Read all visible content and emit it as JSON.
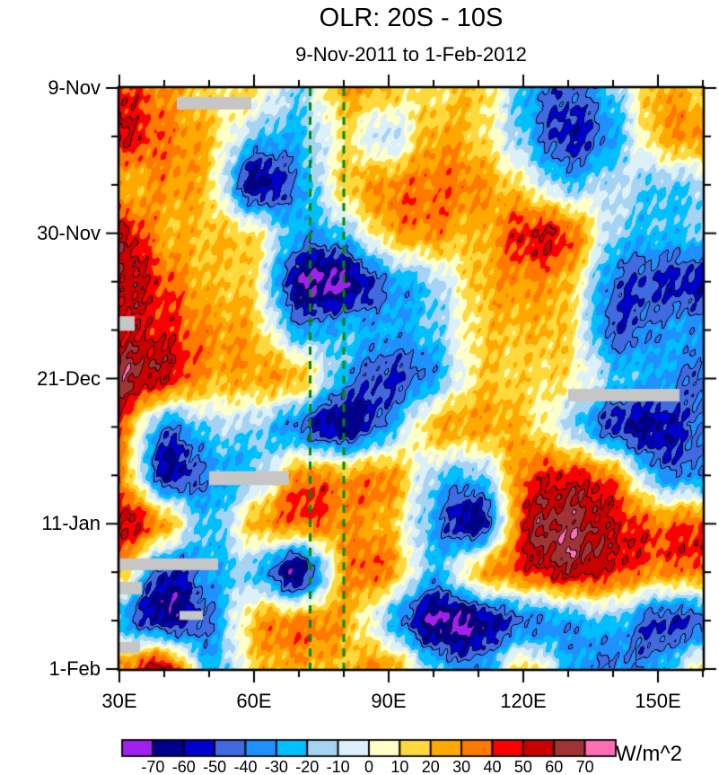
{
  "title": "OLR: 20S - 10S",
  "subtitle": "9-Nov-2011 to 1-Feb-2012",
  "colorbar": {
    "unit_label": "W/m^2"
  },
  "chart_data": {
    "type": "heatmap",
    "title": "OLR: 20S - 10S",
    "subtitle": "9-Nov-2011 to 1-Feb-2012",
    "unit": "W/m^2",
    "x_range_lon": [
      30,
      160
    ],
    "xlabel_ticks": [
      "30E",
      "60E",
      "90E",
      "120E",
      "150E"
    ],
    "x_tick_lons": [
      30,
      60,
      90,
      120,
      150
    ],
    "x_minor_step_deg": 10,
    "y_range_dates": [
      "9-Nov-2011",
      "1-Feb-2012"
    ],
    "ylabel_ticks": [
      "9-Nov",
      "30-Nov",
      "21-Dec",
      "11-Jan",
      "1-Feb"
    ],
    "y_tick_days": [
      0,
      21,
      42,
      63,
      84
    ],
    "y_minor_step_days": 7,
    "levels": [
      -70,
      -60,
      -50,
      -40,
      -30,
      -20,
      -10,
      0,
      10,
      20,
      30,
      40,
      50,
      60,
      70
    ],
    "colors": [
      "#A020F0",
      "#00008C",
      "#0000CD",
      "#4169E1",
      "#1E90FF",
      "#00BFFF",
      "#A5D3F3",
      "#DCF0FA",
      "#FFFFC8",
      "#FFD83C",
      "#FFA800",
      "#FF7800",
      "#FA0000",
      "#C80000",
      "#A03434",
      "#FF6EB4"
    ],
    "grid_lons": [
      30,
      40,
      50,
      60,
      70,
      80,
      90,
      100,
      110,
      120,
      130,
      140,
      150,
      160
    ],
    "grid_days": [
      0,
      7,
      14,
      21,
      28,
      35,
      42,
      49,
      56,
      63,
      70,
      77,
      84
    ],
    "values": [
      [
        45,
        30,
        15,
        12,
        -15,
        25,
        20,
        10,
        20,
        -25,
        -45,
        -20,
        25,
        15
      ],
      [
        50,
        35,
        20,
        -20,
        -25,
        10,
        -10,
        25,
        15,
        -20,
        -55,
        -30,
        20,
        30
      ],
      [
        20,
        30,
        15,
        -60,
        -35,
        15,
        30,
        35,
        30,
        10,
        -20,
        -10,
        -20,
        -15
      ],
      [
        55,
        25,
        20,
        10,
        -30,
        -20,
        20,
        30,
        20,
        45,
        40,
        -15,
        -25,
        -20
      ],
      [
        60,
        40,
        20,
        10,
        -65,
        -70,
        -35,
        -15,
        20,
        30,
        20,
        -40,
        -50,
        -55
      ],
      [
        50,
        45,
        30,
        20,
        -30,
        -25,
        -30,
        -20,
        15,
        20,
        15,
        -45,
        -35,
        -30
      ],
      [
        65,
        50,
        25,
        25,
        20,
        -30,
        -50,
        -30,
        15,
        15,
        10,
        -20,
        -30,
        -45
      ],
      [
        40,
        -35,
        -15,
        -15,
        -40,
        -65,
        -30,
        20,
        25,
        20,
        -10,
        -50,
        -60,
        -40
      ],
      [
        35,
        -55,
        -35,
        -20,
        30,
        25,
        30,
        -15,
        -20,
        35,
        45,
        30,
        -30,
        -35
      ],
      [
        55,
        25,
        -25,
        20,
        35,
        30,
        20,
        -30,
        -60,
        45,
        65,
        50,
        35,
        40
      ],
      [
        20,
        -50,
        -30,
        -20,
        -65,
        25,
        30,
        -25,
        20,
        40,
        55,
        45,
        30,
        35
      ],
      [
        -30,
        -60,
        -40,
        20,
        30,
        25,
        -20,
        -70,
        -65,
        -40,
        -30,
        -20,
        -50,
        -45
      ],
      [
        30,
        55,
        -25,
        15,
        25,
        20,
        30,
        -20,
        -35,
        15,
        -25,
        -40,
        -30,
        10
      ]
    ],
    "dashed_line_lons": [
      72.5,
      80
    ],
    "dashed_line_color": "#008A00",
    "missing_data_color": "#C6C6C6",
    "missing_data_regions": [
      {
        "lon": [
          42.8,
          59.4
        ],
        "day": [
          1.3,
          3.1
        ]
      },
      {
        "lon": [
          30.0,
          33.4
        ],
        "day": [
          33.0,
          35.1
        ]
      },
      {
        "lon": [
          130.0,
          154.8
        ],
        "day": [
          43.5,
          45.3
        ]
      },
      {
        "lon": [
          50.0,
          67.8
        ],
        "day": [
          55.4,
          57.4
        ]
      },
      {
        "lon": [
          30.0,
          52.0
        ],
        "day": [
          68.0,
          69.7
        ]
      },
      {
        "lon": [
          30.0,
          35.0
        ],
        "day": [
          71.4,
          73.2
        ]
      },
      {
        "lon": [
          43.4,
          48.6
        ],
        "day": [
          75.6,
          76.9
        ]
      },
      {
        "lon": [
          30.0,
          34.6
        ],
        "day": [
          80.1,
          81.7
        ]
      }
    ]
  }
}
